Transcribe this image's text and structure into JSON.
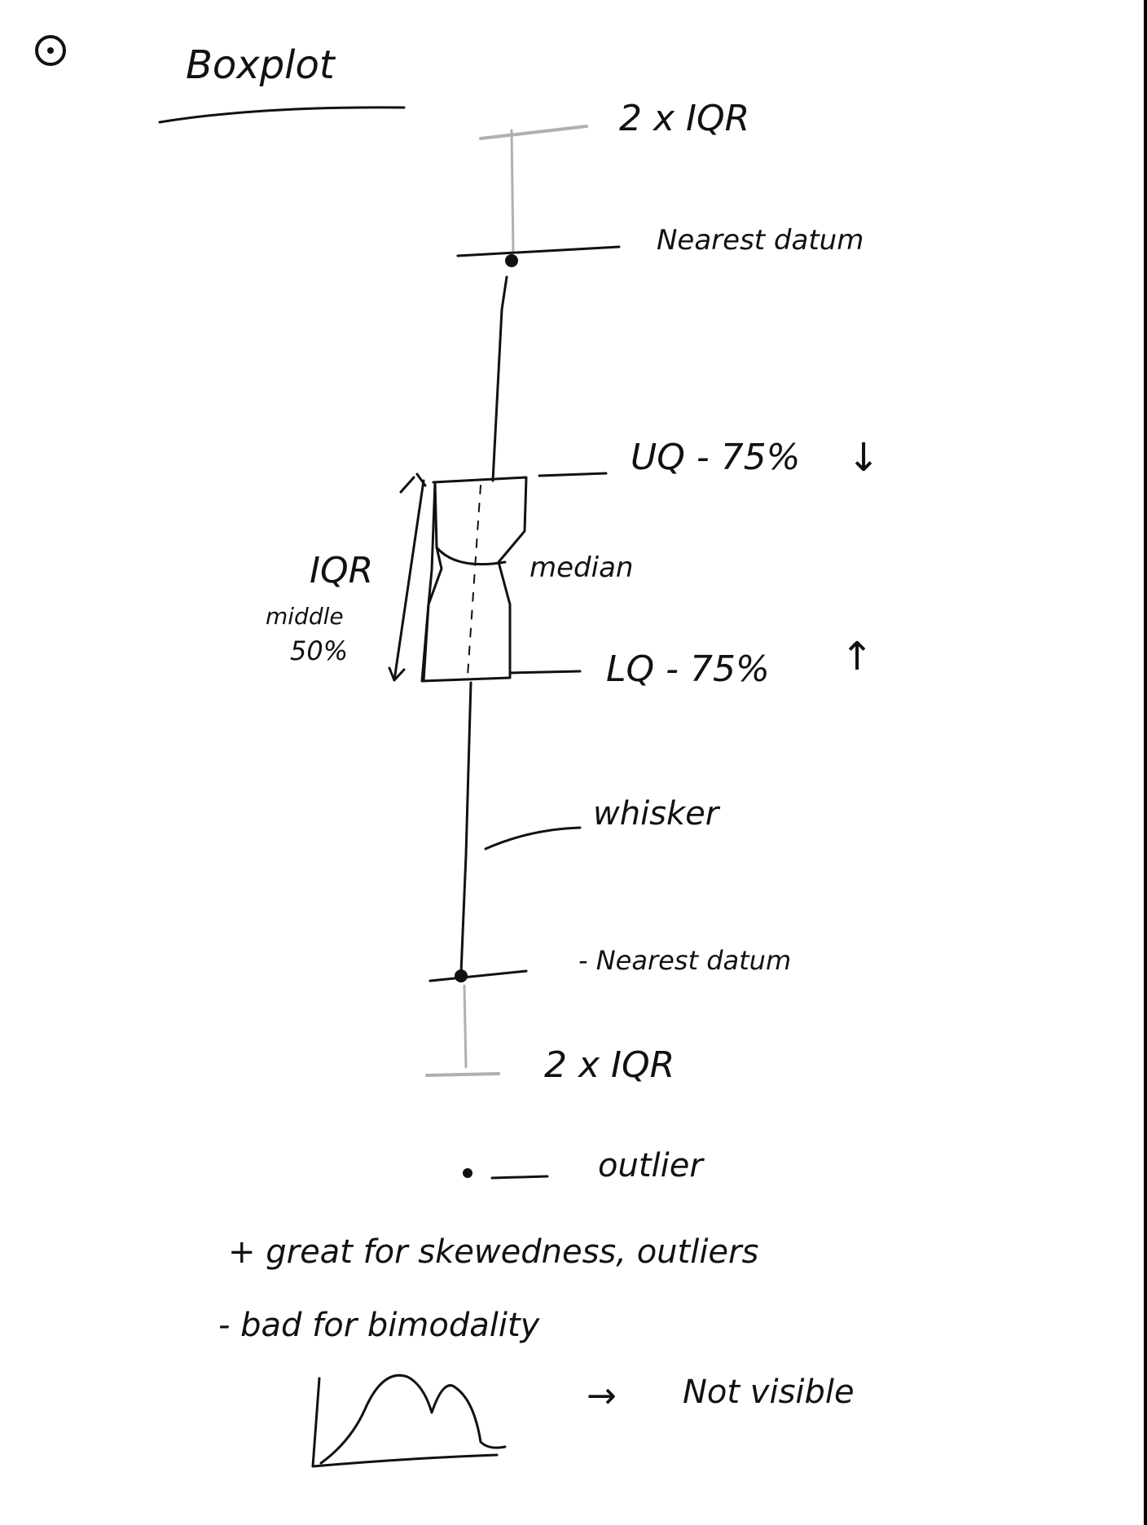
{
  "title": "Boxplot",
  "labels": {
    "upper_limit": "2 x IQR",
    "upper_datum": "Nearest datum",
    "upper_quartile": "UQ - 75%",
    "upper_arrow": "↓",
    "iqr": "IQR",
    "middle": "middle",
    "fifty": "50%",
    "median": "median",
    "lower_quartile": "LQ - 75%",
    "lower_arrow": "↑",
    "whisker": "whisker",
    "lower_datum": "- Nearest datum",
    "lower_limit": "2 x IQR",
    "outlier": "outlier"
  },
  "notes": {
    "pro": "+ great for skewedness, outliers",
    "con": "- bad for bimodality",
    "arrow": "→",
    "not_visible": "Not visible"
  }
}
